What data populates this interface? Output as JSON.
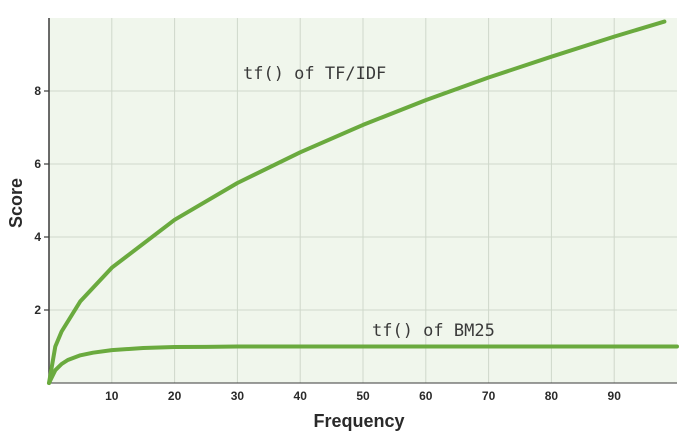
{
  "chart_data": {
    "type": "line",
    "xlabel": "Frequency",
    "ylabel": "Score",
    "xlim": [
      0,
      100
    ],
    "ylim": [
      0,
      10
    ],
    "xticks": [
      10,
      20,
      30,
      40,
      50,
      60,
      70,
      80,
      90
    ],
    "yticks": [
      2,
      4,
      6,
      8
    ],
    "grid": true,
    "series": [
      {
        "name": "tf() of TF/IDF",
        "color": "#6aaa3e",
        "x": [
          0,
          1,
          2,
          5,
          10,
          20,
          30,
          40,
          50,
          60,
          70,
          80,
          90,
          98
        ],
        "y": [
          0,
          1.0,
          1.41,
          2.24,
          3.16,
          4.47,
          5.48,
          6.32,
          7.07,
          7.75,
          8.37,
          8.94,
          9.49,
          9.9
        ]
      },
      {
        "name": "tf() of BM25",
        "color": "#6aaa3e",
        "x": [
          0,
          1,
          2,
          3,
          5,
          7,
          10,
          15,
          20,
          25,
          30,
          40,
          50,
          60,
          70,
          80,
          90,
          100
        ],
        "y": [
          0,
          0.35,
          0.52,
          0.63,
          0.76,
          0.83,
          0.9,
          0.96,
          0.985,
          0.99,
          1.0,
          1.0,
          1.0,
          1.0,
          1.0,
          1.0,
          1.0,
          1.0
        ]
      }
    ],
    "annotations": [
      "tf() of TF/IDF",
      "tf() of BM25"
    ]
  },
  "colors": {
    "plot_bg": "#f0f6ec",
    "grid": "#cfd8cb",
    "axis": "#3a3a3a",
    "line": "#6aaa3e"
  }
}
